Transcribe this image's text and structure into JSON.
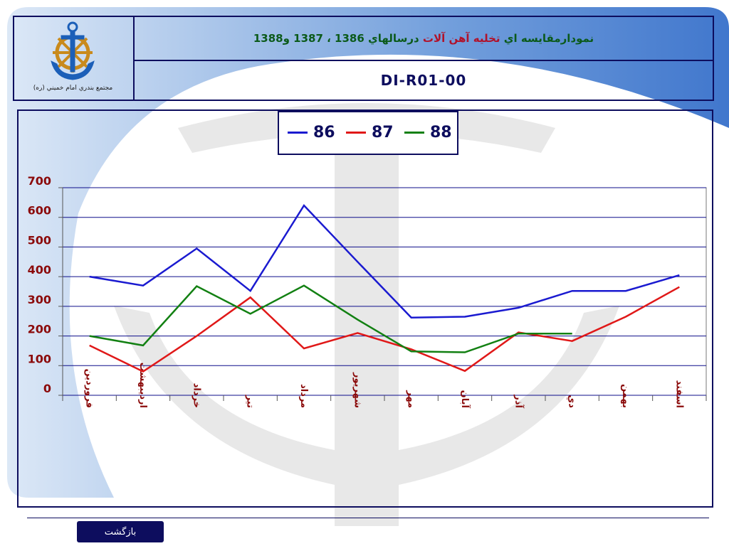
{
  "header": {
    "title_part1": "نمودارمقايسه اي",
    "title_part2": "تخليه آهن آلات",
    "title_part3": "درسالهاي 1386 ، 1387 و1388",
    "code": "DI-R01-00",
    "logo_caption": "مجتمع بندري امام خميني (ره)"
  },
  "footer": {
    "back_label": "بازگشت"
  },
  "colors": {
    "s86": "#1a1ad0",
    "s87": "#e01818",
    "s88": "#128012",
    "frame": "#0d0d5e",
    "axis_label": "#8b0a0a"
  },
  "chart_data": {
    "type": "line",
    "title": "",
    "xlabel": "",
    "ylabel": "",
    "ylim": [
      0,
      700
    ],
    "yticks": [
      0,
      100,
      200,
      300,
      400,
      500,
      600,
      700
    ],
    "ytick_labels": [
      "0",
      "100",
      "200",
      "300",
      "400",
      "500",
      "600",
      "700"
    ],
    "categories": [
      "فروردين",
      "ارديبهشت",
      "خرداد",
      "تير",
      "مرداد",
      "شهريور",
      "مهر",
      "آبان",
      "آذر",
      "دي",
      "بهمن",
      "اسفند"
    ],
    "grid": true,
    "legend_position": "top-center",
    "series": [
      {
        "name": "86",
        "color": "#1a1ad0",
        "values": [
          400,
          370,
          495,
          352,
          640,
          450,
          262,
          265,
          295,
          352,
          352,
          405
        ]
      },
      {
        "name": "87",
        "color": "#e01818",
        "values": [
          168,
          80,
          200,
          330,
          158,
          210,
          155,
          82,
          212,
          183,
          265,
          365
        ]
      },
      {
        "name": "88",
        "color": "#128012",
        "values": [
          200,
          168,
          368,
          275,
          370,
          255,
          148,
          145,
          208,
          208,
          null,
          null
        ]
      }
    ]
  }
}
